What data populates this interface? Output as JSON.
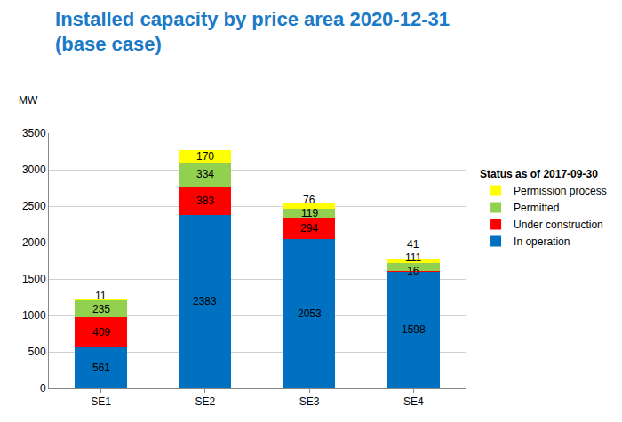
{
  "chart_data": {
    "type": "bar",
    "title": "Installed capacity by price area 2020-12-31\n(base case)",
    "y_label": "MW",
    "legend_title": "Status as of 2017-09-30",
    "categories": [
      "SE1",
      "SE2",
      "SE3",
      "SE4"
    ],
    "series": [
      {
        "name": "In operation",
        "color": "#0070c0",
        "values": [
          561,
          2383,
          2053,
          1598
        ]
      },
      {
        "name": "Under construction",
        "color": "#ff0000",
        "values": [
          409,
          383,
          294,
          16
        ]
      },
      {
        "name": "Permitted",
        "color": "#92d050",
        "values": [
          235,
          334,
          119,
          111
        ]
      },
      {
        "name": "Permission process",
        "color": "#ffff00",
        "values": [
          11,
          170,
          76,
          41
        ]
      }
    ],
    "stacked": true,
    "data_labels": true,
    "ylim": [
      0,
      3500
    ],
    "yticks": [
      0,
      500,
      1000,
      1500,
      2000,
      2500,
      3000,
      3500
    ],
    "grid": true,
    "legend": "right"
  }
}
